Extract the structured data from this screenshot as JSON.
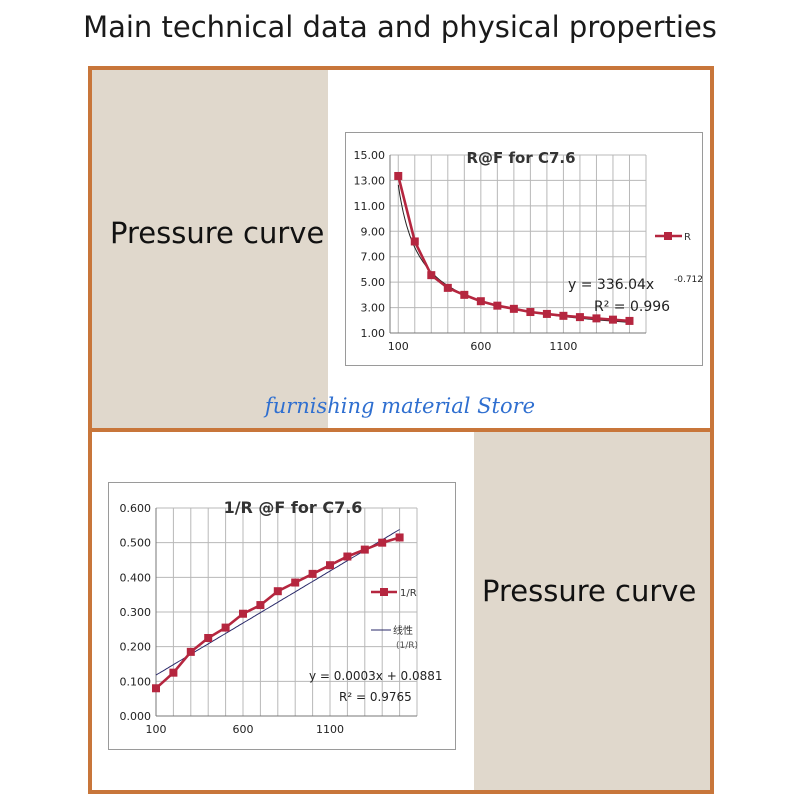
{
  "page": {
    "title": "Main technical data and physical properties",
    "watermark": "furnishing material Store"
  },
  "panels": [
    {
      "label": "Pressure curve"
    },
    {
      "label": "Pressure curve"
    }
  ],
  "chart_data": [
    {
      "type": "line",
      "title": "R@F for C7.6",
      "xlabel": "",
      "ylabel": "",
      "xlim": [
        50,
        1600
      ],
      "ylim": [
        1.0,
        15.0
      ],
      "x_ticks": [
        "100",
        "600",
        "1100"
      ],
      "y_ticks": [
        "15.00",
        "13.00",
        "11.00",
        "9.00",
        "7.00",
        "5.00",
        "3.00",
        "1.00"
      ],
      "x": [
        100,
        200,
        300,
        400,
        500,
        600,
        700,
        800,
        900,
        1000,
        1100,
        1200,
        1300,
        1400,
        1500
      ],
      "series": [
        {
          "name": "R",
          "values": [
            13.35,
            8.2,
            5.55,
            4.55,
            4.0,
            3.5,
            3.15,
            2.9,
            2.65,
            2.5,
            2.35,
            2.25,
            2.15,
            2.05,
            1.95
          ],
          "color": "#b5263f"
        }
      ],
      "trendline": {
        "type": "power",
        "a": 336.04,
        "b": -0.712,
        "equation_main": "y = 336.04x",
        "equation_exp": "-0.712",
        "r2_label": "R² = 0.996"
      },
      "legend": "right",
      "grid": true
    },
    {
      "type": "line",
      "title": "1/R @F for C7.6",
      "xlabel": "",
      "ylabel": "",
      "xlim": [
        100,
        1600
      ],
      "ylim": [
        0.0,
        0.6
      ],
      "x_ticks": [
        "100",
        "600",
        "1100"
      ],
      "y_ticks": [
        "0.600",
        "0.500",
        "0.400",
        "0.300",
        "0.200",
        "0.100",
        "0.000"
      ],
      "x": [
        100,
        200,
        300,
        400,
        500,
        600,
        700,
        800,
        900,
        1000,
        1100,
        1200,
        1300,
        1400,
        1500
      ],
      "series": [
        {
          "name": "1/R",
          "values": [
            0.08,
            0.125,
            0.185,
            0.225,
            0.255,
            0.295,
            0.32,
            0.36,
            0.385,
            0.41,
            0.435,
            0.46,
            0.48,
            0.5,
            0.515
          ],
          "color": "#b5263f"
        }
      ],
      "trendline": {
        "type": "linear",
        "slope": 0.0003,
        "intercept": 0.0881,
        "legend_label": "线性",
        "legend_sub": "(1/R)",
        "equation": "y = 0.0003x + 0.0881",
        "r2_label": "R² = 0.9765"
      },
      "legend": "right",
      "grid": true
    }
  ]
}
